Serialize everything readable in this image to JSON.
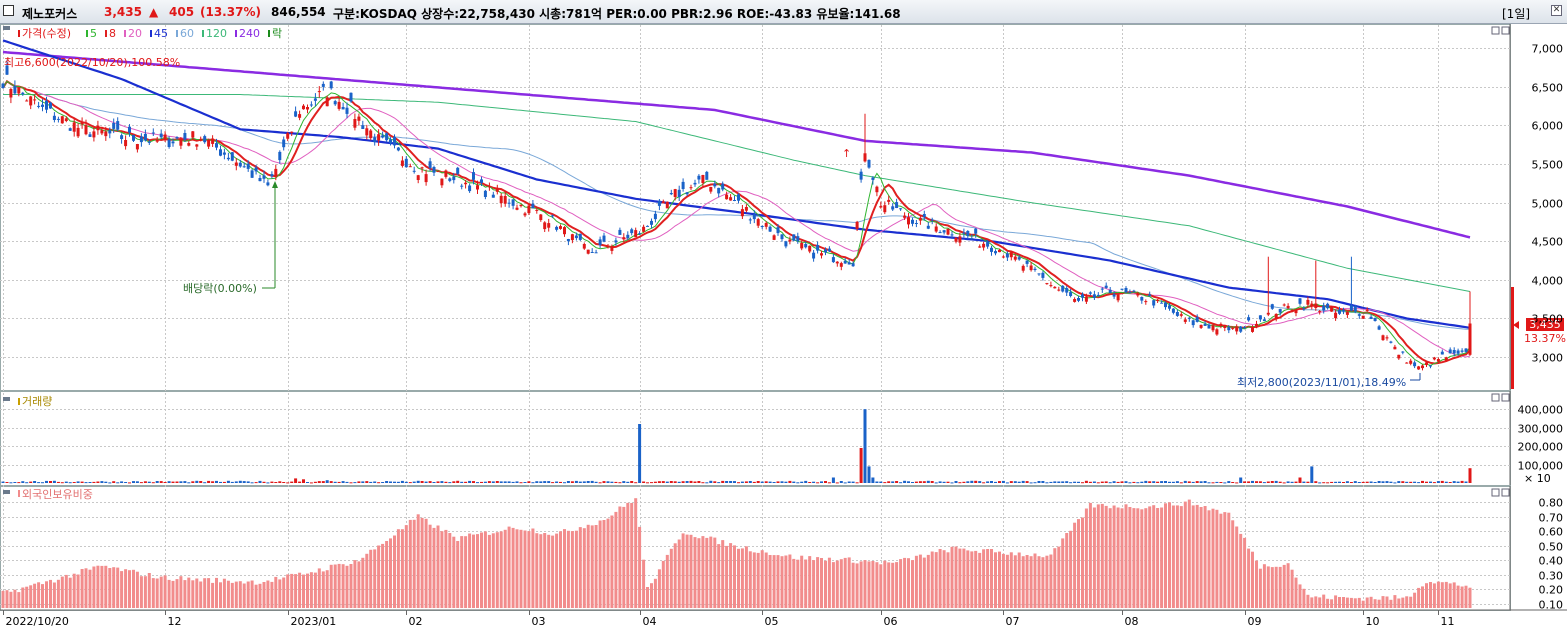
{
  "header": {
    "name": "제노포커스",
    "price": "3,435",
    "change_arrow": "▲",
    "change": "405",
    "change_pct": "(13.37%)",
    "volume": "846,554",
    "info": "구분:KOSDAQ 상장수:22,758,430 시총:781억 PER:0.00 PBR:2.96 ROE:-43.83 유보율:141.68",
    "period": "[1일]",
    "close_glyph": "✕"
  },
  "legend": {
    "price_label": "가격(수정)",
    "ma": [
      {
        "label": "5",
        "color": "#2fb52f"
      },
      {
        "label": "8",
        "color": "#e02020"
      },
      {
        "label": "20",
        "color": "#e060c0"
      },
      {
        "label": "45",
        "color": "#1a2fd0"
      },
      {
        "label": "60",
        "color": "#7aa8d8"
      },
      {
        "label": "120",
        "color": "#3cb878"
      },
      {
        "label": "240",
        "color": "#8a2be2"
      }
    ],
    "rak_label": "락",
    "volume_label": "거래량",
    "foreign_label": "외국인보유비중"
  },
  "annotations": {
    "high": "최고6,600(2022/10/20),100.58%",
    "dividend": "배당락(0.00%)",
    "low": "최저2,800(2023/11/01),18.49%",
    "current_price": "3,435",
    "current_pct": "13.37%",
    "up_glyph": "↑",
    "dn_glyph": "↓",
    "x10": "× 10"
  },
  "axes": {
    "price_ticks": [
      "7,000",
      "6,500",
      "6,000",
      "5,500",
      "5,000",
      "4,500",
      "4,000",
      "3,500",
      "3,000"
    ],
    "volume_ticks": [
      "400,000",
      "300,000",
      "200,000",
      "100,000"
    ],
    "foreign_ticks": [
      "0.80",
      "0.70",
      "0.60",
      "0.50",
      "0.40",
      "0.30",
      "0.20",
      "0.10"
    ],
    "date_labels": [
      "2022/10/20",
      "12",
      "2023/01",
      "02",
      "03",
      "04",
      "05",
      "06",
      "07",
      "08",
      "09",
      "10",
      "11"
    ]
  },
  "colors": {
    "up": "#e01818",
    "down": "#1a62c8",
    "foreign": "#f28c8c",
    "grid": "#c8c8c8"
  },
  "chart_data": [
    {
      "type": "candlestick",
      "title": "가격(수정)",
      "ylim": [
        2600,
        7300
      ],
      "x_range": [
        "2022/10/20",
        "2023/11/20"
      ],
      "note": "daily candles generated from key anchor prices read off chart",
      "anchors": [
        {
          "day": 0,
          "close": 6600
        },
        {
          "day": 10,
          "close": 6200
        },
        {
          "day": 20,
          "close": 5950
        },
        {
          "day": 30,
          "close": 5850
        },
        {
          "day": 40,
          "close": 5800
        },
        {
          "day": 50,
          "close": 5850
        },
        {
          "day": 60,
          "close": 5500
        },
        {
          "day": 67,
          "close": 5200
        },
        {
          "day": 70,
          "close": 5550
        },
        {
          "day": 75,
          "close": 6200
        },
        {
          "day": 82,
          "close": 6450
        },
        {
          "day": 88,
          "close": 6200
        },
        {
          "day": 95,
          "close": 5800
        },
        {
          "day": 105,
          "close": 5450
        },
        {
          "day": 115,
          "close": 5300
        },
        {
          "day": 125,
          "close": 5100
        },
        {
          "day": 138,
          "close": 4800
        },
        {
          "day": 148,
          "close": 4350
        },
        {
          "day": 155,
          "close": 4500
        },
        {
          "day": 162,
          "close": 4650
        },
        {
          "day": 170,
          "close": 5100
        },
        {
          "day": 178,
          "close": 5300
        },
        {
          "day": 188,
          "close": 4900
        },
        {
          "day": 198,
          "close": 4500
        },
        {
          "day": 205,
          "close": 4350
        },
        {
          "day": 215,
          "close": 4250
        },
        {
          "day": 218,
          "close": 5700
        },
        {
          "day": 222,
          "close": 5000
        },
        {
          "day": 232,
          "close": 4750
        },
        {
          "day": 242,
          "close": 4600
        },
        {
          "day": 252,
          "close": 4400
        },
        {
          "day": 262,
          "close": 4050
        },
        {
          "day": 272,
          "close": 3700
        },
        {
          "day": 280,
          "close": 3850
        },
        {
          "day": 290,
          "close": 3750
        },
        {
          "day": 300,
          "close": 3450
        },
        {
          "day": 312,
          "close": 3350
        },
        {
          "day": 322,
          "close": 3600
        },
        {
          "day": 330,
          "close": 3700
        },
        {
          "day": 338,
          "close": 3550
        },
        {
          "day": 345,
          "close": 3600
        },
        {
          "day": 352,
          "close": 3100
        },
        {
          "day": 358,
          "close": 2850
        },
        {
          "day": 364,
          "close": 3000
        },
        {
          "day": 370,
          "close": 3030
        },
        {
          "day": 371,
          "close": 3435
        }
      ],
      "spikes": [
        {
          "day": 218,
          "high": 6150
        },
        {
          "day": 320,
          "high": 4300
        },
        {
          "day": 332,
          "high": 4250
        },
        {
          "day": 341,
          "high": 4300
        },
        {
          "day": 371,
          "high": 3850
        }
      ],
      "moving_averages": {
        "240": [
          [
            0,
            6950
          ],
          [
            60,
            6700
          ],
          [
            120,
            6450
          ],
          [
            180,
            6200
          ],
          [
            218,
            5800
          ],
          [
            260,
            5650
          ],
          [
            300,
            5350
          ],
          [
            340,
            4950
          ],
          [
            371,
            4550
          ]
        ],
        "120": [
          [
            0,
            6400
          ],
          [
            60,
            6400
          ],
          [
            110,
            6300
          ],
          [
            160,
            6050
          ],
          [
            200,
            5550
          ],
          [
            218,
            5350
          ],
          [
            260,
            5000
          ],
          [
            300,
            4700
          ],
          [
            340,
            4150
          ],
          [
            371,
            3850
          ]
        ],
        "45": [
          [
            0,
            7100
          ],
          [
            30,
            6600
          ],
          [
            60,
            5950
          ],
          [
            85,
            5850
          ],
          [
            110,
            5700
          ],
          [
            135,
            5300
          ],
          [
            160,
            5050
          ],
          [
            190,
            4850
          ],
          [
            218,
            4650
          ],
          [
            250,
            4500
          ],
          [
            280,
            4250
          ],
          [
            310,
            3900
          ],
          [
            335,
            3750
          ],
          [
            355,
            3500
          ],
          [
            371,
            3380
          ]
        ]
      }
    },
    {
      "type": "bar",
      "title": "거래량",
      "ylim": [
        0,
        450000
      ],
      "spikes": [
        {
          "day": 74,
          "value": 25000
        },
        {
          "day": 76,
          "value": 20000
        },
        {
          "day": 82,
          "value": 15000
        },
        {
          "day": 161,
          "value": 320000
        },
        {
          "day": 210,
          "value": 30000
        },
        {
          "day": 217,
          "value": 190000
        },
        {
          "day": 218,
          "value": 400000
        },
        {
          "day": 219,
          "value": 90000
        },
        {
          "day": 220,
          "value": 30000
        },
        {
          "day": 313,
          "value": 30000
        },
        {
          "day": 328,
          "value": 30000
        },
        {
          "day": 331,
          "value": 90000
        },
        {
          "day": 371,
          "value": 80000
        }
      ]
    },
    {
      "type": "bar",
      "title": "외국인보유비중",
      "ylim": [
        0.07,
        0.9
      ],
      "anchors": [
        {
          "day": 0,
          "value": 0.17
        },
        {
          "day": 15,
          "value": 0.28
        },
        {
          "day": 25,
          "value": 0.36
        },
        {
          "day": 40,
          "value": 0.28
        },
        {
          "day": 55,
          "value": 0.26
        },
        {
          "day": 65,
          "value": 0.25
        },
        {
          "day": 75,
          "value": 0.3
        },
        {
          "day": 90,
          "value": 0.4
        },
        {
          "day": 105,
          "value": 0.7
        },
        {
          "day": 115,
          "value": 0.55
        },
        {
          "day": 130,
          "value": 0.63
        },
        {
          "day": 140,
          "value": 0.58
        },
        {
          "day": 152,
          "value": 0.68
        },
        {
          "day": 160,
          "value": 0.83
        },
        {
          "day": 163,
          "value": 0.2
        },
        {
          "day": 172,
          "value": 0.6
        },
        {
          "day": 185,
          "value": 0.5
        },
        {
          "day": 200,
          "value": 0.42
        },
        {
          "day": 215,
          "value": 0.4
        },
        {
          "day": 225,
          "value": 0.38
        },
        {
          "day": 240,
          "value": 0.48
        },
        {
          "day": 255,
          "value": 0.45
        },
        {
          "day": 265,
          "value": 0.43
        },
        {
          "day": 275,
          "value": 0.78
        },
        {
          "day": 290,
          "value": 0.77
        },
        {
          "day": 300,
          "value": 0.8
        },
        {
          "day": 310,
          "value": 0.72
        },
        {
          "day": 318,
          "value": 0.36
        },
        {
          "day": 325,
          "value": 0.38
        },
        {
          "day": 330,
          "value": 0.15
        },
        {
          "day": 340,
          "value": 0.14
        },
        {
          "day": 355,
          "value": 0.14
        },
        {
          "day": 360,
          "value": 0.26
        },
        {
          "day": 371,
          "value": 0.22
        }
      ]
    }
  ]
}
